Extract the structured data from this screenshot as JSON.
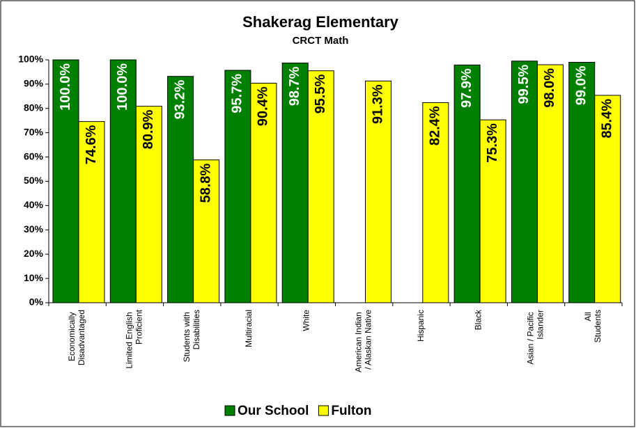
{
  "chart_data": {
    "type": "bar",
    "title": "Shakerag Elementary",
    "subtitle": "CRCT Math",
    "categories": [
      "Economically Disadvantaged",
      "Limited English Proficient",
      "Students with Disabilities",
      "Multiracial",
      "White",
      "American Indian / Alaskan Native",
      "Hispanic",
      "Black",
      "Asian / Pacific Islander",
      "All Students"
    ],
    "series": [
      {
        "name": "Our School",
        "color": "#008000",
        "values": [
          100,
          100,
          93.2,
          95.7,
          98.7,
          null,
          null,
          97.9,
          99.5,
          99.0
        ],
        "value_labels": [
          "100.0%",
          "100.0%",
          "93.2%",
          "95.7%",
          "98.7%",
          null,
          null,
          "97.9%",
          "99.5%",
          "99.0%"
        ]
      },
      {
        "name": "Fulton",
        "color": "#ffff00",
        "values": [
          74.6,
          80.9,
          58.8,
          90.4,
          95.5,
          91.3,
          82.4,
          75.3,
          98.0,
          85.4
        ],
        "value_labels": [
          "74.6%",
          "80.9%",
          "58.8%",
          "90.4%",
          "95.5%",
          "91.3%",
          "82.4%",
          "75.3%",
          "98.0%",
          "85.4%"
        ]
      }
    ],
    "ylim": [
      0,
      100
    ],
    "yticks": [
      {
        "value": 0,
        "label": "0%"
      },
      {
        "value": 10,
        "label": "10%"
      },
      {
        "value": 20,
        "label": "20%"
      },
      {
        "value": 30,
        "label": "30%"
      },
      {
        "value": 40,
        "label": "40%"
      },
      {
        "value": 50,
        "label": "50%"
      },
      {
        "value": 60,
        "label": "60%"
      },
      {
        "value": 70,
        "label": "70%"
      },
      {
        "value": 80,
        "label": "80%"
      },
      {
        "value": 90,
        "label": "90%"
      },
      {
        "value": 100,
        "label": "100%"
      }
    ],
    "grid": false,
    "legend": "bottom"
  }
}
